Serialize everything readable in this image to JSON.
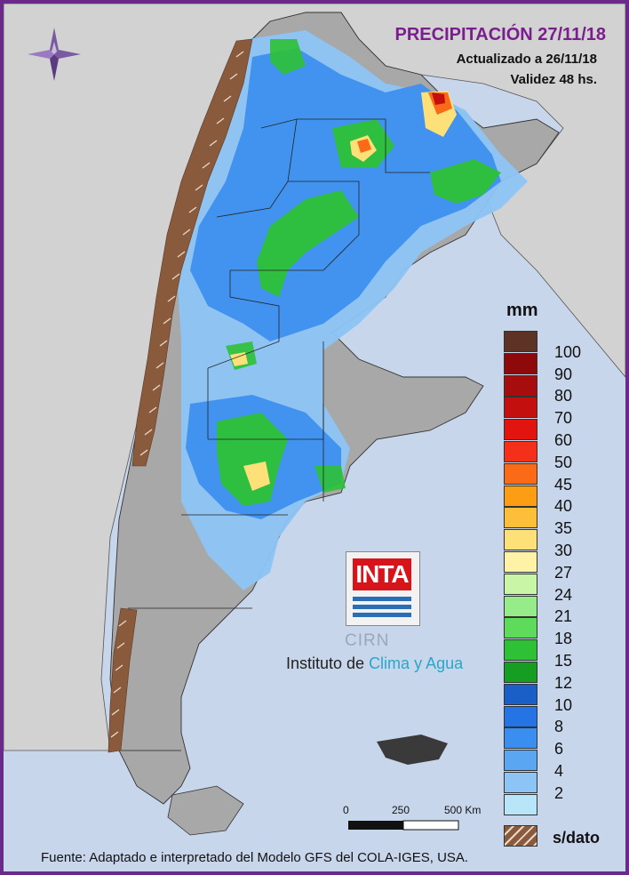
{
  "header": {
    "title": "PRECIPITACIÓN 27/11/18",
    "updated": "Actualizado a 26/11/18",
    "validity": "Validez 48 hs."
  },
  "legend": {
    "unit": "mm",
    "classes": [
      {
        "label": "",
        "color": "#5c3324"
      },
      {
        "label": "100",
        "color": "#8e0a0a"
      },
      {
        "label": "90",
        "color": "#a80d0d"
      },
      {
        "label": "80",
        "color": "#c40f0f"
      },
      {
        "label": "70",
        "color": "#e2140f"
      },
      {
        "label": "60",
        "color": "#f5301a"
      },
      {
        "label": "50",
        "color": "#fa6a17"
      },
      {
        "label": "45",
        "color": "#fd9d14"
      },
      {
        "label": "40",
        "color": "#fdbf3a"
      },
      {
        "label": "35",
        "color": "#fde178"
      },
      {
        "label": "30",
        "color": "#fef2a6"
      },
      {
        "label": "27",
        "color": "#c8f5a6"
      },
      {
        "label": "24",
        "color": "#96ec88"
      },
      {
        "label": "21",
        "color": "#5edb5a"
      },
      {
        "label": "18",
        "color": "#2ec136"
      },
      {
        "label": "15",
        "color": "#169e22"
      },
      {
        "label": "12",
        "color": "#1a5ec8"
      },
      {
        "label": "10",
        "color": "#2474e6"
      },
      {
        "label": "8",
        "color": "#3a8ef0"
      },
      {
        "label": "6",
        "color": "#5aa6f3"
      },
      {
        "label": "4",
        "color": "#8cc4f6"
      },
      {
        "label": "2",
        "color": "#b8e6f8"
      }
    ],
    "no_data_label": "s/dato",
    "no_data_color": "#8a5a3c"
  },
  "scale_bar": {
    "labels": [
      "0",
      "250",
      "500 Km"
    ]
  },
  "logos": {
    "inta": "INTA",
    "cirn": "CIRN",
    "institute_prefix": "Instituto de ",
    "institute_highlight": "Clima y Agua"
  },
  "source": "Fuente: Adaptado e interpretado del Modelo GFS del COLA-IGES, USA.",
  "map_colors": {
    "sea": "#c8d6ec",
    "neighbor_land": "#d2d2d2",
    "argentina_land": "#a8a8a8",
    "rain_light": "#8cc4f6",
    "rain_mid": "#3a8ef0",
    "rain_green": "#2ec136",
    "rain_yellow": "#fde178",
    "rain_orange": "#fa6a17",
    "rain_red": "#c40f0f",
    "compass": "#7a5aa0"
  }
}
